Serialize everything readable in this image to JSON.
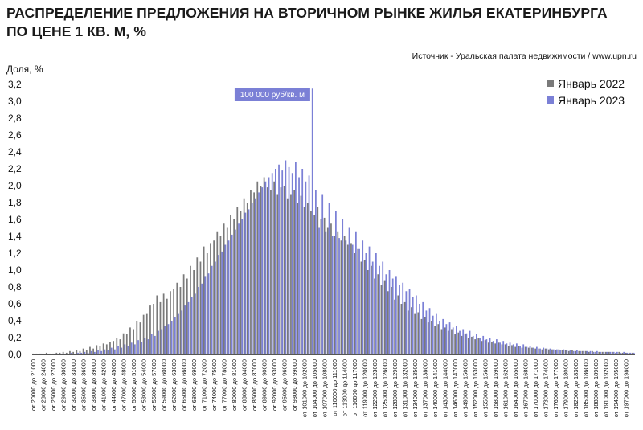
{
  "header": {
    "title_line1": "РАСПРЕДЕЛЕНИЕ ПРЕДЛОЖЕНИЯ НА ВТОРИЧНОМ РЫНКЕ ЖИЛЬЯ ЕКАТЕРИНБУРГА",
    "title_line2": "ПО ЦЕНЕ 1 КВ. М, %",
    "source": "Источник - Уральская палата недвижимости / www.upn.ru"
  },
  "colors": {
    "series_2022": "#7a7a7a",
    "series_2023": "#7b80d6",
    "axis": "#555555",
    "callout_bg": "#7b80d6",
    "callout_text": "#ffffff"
  },
  "chart_data": {
    "type": "bar",
    "title": "РАСПРЕДЕЛЕНИЕ ПРЕДЛОЖЕНИЯ НА ВТОРИЧНОМ РЫНКЕ ЖИЛЬЯ ЕКАТЕРИНБУРГА ПО ЦЕНЕ 1 КВ. М, %",
    "ylabel": "Доля, %",
    "xlabel": "",
    "ylim": [
      0,
      3.2
    ],
    "yticks": [
      "0,0",
      "0,2",
      "0,4",
      "0,6",
      "0,8",
      "1,0",
      "1,2",
      "1,4",
      "1,6",
      "1,8",
      "2,0",
      "2,2",
      "2,4",
      "2,6",
      "2,8",
      "3,0",
      "3,2"
    ],
    "x_start_thousand_rub": 20,
    "x_end_thousand_rub": 199,
    "x_step_thousand_rub": 1,
    "category_label_template": "от {a} 000 до {b} 000",
    "x_tick_labels": [
      "от 20000 до 21000",
      "от 23000 до 24000",
      "от 26000 до 27000",
      "от 29000 до 30000",
      "от 32000 до 33000",
      "от 35000 до 36000",
      "от 38000 до 39000",
      "от 41000 до 42000",
      "от 44000 до 45000",
      "от 47000 до 48000",
      "от 50000 до 51000",
      "от 53000 до 54000",
      "от 56000 до 57000",
      "от 59000 до 60000",
      "от 62000 до 63000",
      "от 65000 до 66000",
      "от 68000 до 69000",
      "от 71000 до 72000",
      "от 74000 до 75000",
      "от 77000 до 78000",
      "от 80000 до 81000",
      "от 83000 до 84000",
      "от 86000 до 87000",
      "от 89000 до 90000",
      "от 92000 до 93000",
      "от 95000 до 96000",
      "от 98000 до 99000",
      "от 101000 до 102000",
      "от 104000 до 105000",
      "от 107000 до 108000",
      "от 110000 до 111000",
      "от 113000 до 114000",
      "от 116000 до 117000",
      "от 119000 до 120000",
      "от 122000 до 123000",
      "от 125000 до 126000",
      "от 128000 до 129000",
      "от 131000 до 132000",
      "от 134000 до 135000",
      "от 137000 до 138000",
      "от 140000 до 141000",
      "от 143000 до 144000",
      "от 146000 до 147000",
      "от 149000 до 150000",
      "от 152000 до 153000",
      "от 155000 до 156000",
      "от 158000 до 159000",
      "от 161000 до 162000",
      "от 164000 до 165000",
      "от 167000 до 168000",
      "от 170000 до 171000",
      "от 173000 до 174000",
      "от 176000 до 177000",
      "от 179000 до 180000",
      "от 182000 до 183000",
      "от 185000 до 186000",
      "от 188000 до 189000",
      "от 191000 до 192000",
      "от 194000 до 195000",
      "от 197000 до 198000"
    ],
    "series": [
      {
        "name": "Январь 2022",
        "values": [
          0.01,
          0.01,
          0.01,
          0.01,
          0.02,
          0.01,
          0.01,
          0.02,
          0.02,
          0.03,
          0.02,
          0.04,
          0.03,
          0.05,
          0.04,
          0.07,
          0.05,
          0.09,
          0.07,
          0.11,
          0.1,
          0.13,
          0.12,
          0.15,
          0.16,
          0.2,
          0.18,
          0.25,
          0.24,
          0.32,
          0.3,
          0.4,
          0.38,
          0.47,
          0.48,
          0.58,
          0.6,
          0.7,
          0.62,
          0.72,
          0.66,
          0.75,
          0.78,
          0.85,
          0.8,
          0.95,
          0.9,
          1.05,
          1.0,
          1.15,
          1.1,
          1.28,
          1.2,
          1.32,
          1.35,
          1.45,
          1.4,
          1.55,
          1.5,
          1.65,
          1.6,
          1.75,
          1.7,
          1.85,
          1.8,
          1.95,
          1.92,
          2.05,
          2.0,
          2.1,
          1.98,
          1.95,
          2.05,
          1.9,
          1.98,
          2.0,
          1.85,
          1.9,
          1.95,
          1.8,
          1.88,
          1.75,
          1.8,
          1.7,
          1.65,
          1.75,
          1.6,
          1.62,
          1.5,
          1.55,
          1.4,
          1.45,
          1.35,
          1.4,
          1.3,
          1.32,
          1.2,
          1.25,
          1.1,
          1.12,
          1.0,
          1.05,
          0.9,
          0.95,
          0.82,
          0.88,
          0.75,
          0.8,
          0.65,
          0.7,
          0.6,
          0.62,
          0.52,
          0.56,
          0.48,
          0.5,
          0.42,
          0.44,
          0.38,
          0.4,
          0.34,
          0.36,
          0.3,
          0.32,
          0.28,
          0.3,
          0.24,
          0.26,
          0.22,
          0.24,
          0.2,
          0.21,
          0.18,
          0.19,
          0.16,
          0.17,
          0.14,
          0.15,
          0.13,
          0.14,
          0.12,
          0.12,
          0.1,
          0.11,
          0.09,
          0.1,
          0.08,
          0.09,
          0.08,
          0.08,
          0.07,
          0.07,
          0.06,
          0.07,
          0.06,
          0.06,
          0.05,
          0.06,
          0.05,
          0.05,
          0.04,
          0.05,
          0.04,
          0.04,
          0.04,
          0.04,
          0.03,
          0.04,
          0.03,
          0.03,
          0.03,
          0.03,
          0.03,
          0.03,
          0.02,
          0.03,
          0.02,
          0.02,
          0.02,
          0.02
        ]
      },
      {
        "name": "Январь 2023",
        "values": [
          0.0,
          0.0,
          0.01,
          0.0,
          0.01,
          0.0,
          0.01,
          0.01,
          0.01,
          0.01,
          0.01,
          0.02,
          0.01,
          0.02,
          0.02,
          0.03,
          0.02,
          0.04,
          0.03,
          0.05,
          0.04,
          0.06,
          0.05,
          0.08,
          0.06,
          0.1,
          0.08,
          0.12,
          0.1,
          0.14,
          0.12,
          0.17,
          0.15,
          0.2,
          0.18,
          0.24,
          0.22,
          0.28,
          0.3,
          0.34,
          0.36,
          0.4,
          0.44,
          0.48,
          0.52,
          0.58,
          0.62,
          0.68,
          0.72,
          0.8,
          0.84,
          0.92,
          0.96,
          1.05,
          1.1,
          1.18,
          1.22,
          1.3,
          1.35,
          1.42,
          1.48,
          1.55,
          1.6,
          1.68,
          1.72,
          1.8,
          1.85,
          1.92,
          1.98,
          2.05,
          2.1,
          2.15,
          2.2,
          2.25,
          2.18,
          2.3,
          2.22,
          2.15,
          2.28,
          2.1,
          2.2,
          2.05,
          2.12,
          3.15,
          1.95,
          1.5,
          1.9,
          1.45,
          1.8,
          1.4,
          1.7,
          1.38,
          1.6,
          1.35,
          1.5,
          1.3,
          1.45,
          1.25,
          1.35,
          1.2,
          1.28,
          1.1,
          1.2,
          1.05,
          1.1,
          0.95,
          1.0,
          0.9,
          0.92,
          0.82,
          0.85,
          0.75,
          0.78,
          0.68,
          0.7,
          0.6,
          0.62,
          0.52,
          0.55,
          0.46,
          0.48,
          0.4,
          0.42,
          0.36,
          0.38,
          0.32,
          0.34,
          0.28,
          0.3,
          0.25,
          0.28,
          0.22,
          0.24,
          0.2,
          0.22,
          0.18,
          0.2,
          0.16,
          0.18,
          0.14,
          0.16,
          0.13,
          0.14,
          0.12,
          0.13,
          0.1,
          0.12,
          0.09,
          0.1,
          0.08,
          0.09,
          0.07,
          0.08,
          0.07,
          0.07,
          0.06,
          0.06,
          0.05,
          0.06,
          0.05,
          0.05,
          0.04,
          0.05,
          0.04,
          0.04,
          0.04,
          0.04,
          0.03,
          0.04,
          0.03,
          0.03,
          0.03,
          0.03,
          0.03,
          0.03,
          0.02,
          0.03,
          0.02,
          0.02,
          0.02
        ]
      }
    ],
    "legend_position": "top-right",
    "grid": false,
    "annotation": "100 000 руб/кв. м"
  }
}
